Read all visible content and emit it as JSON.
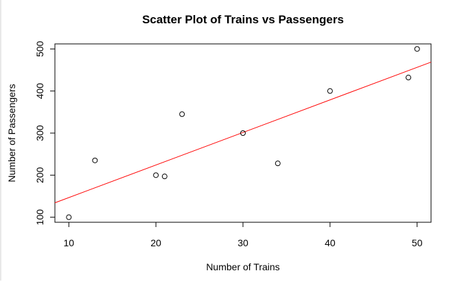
{
  "chart_data": {
    "type": "scatter",
    "title": "Scatter Plot of Trains vs Passengers",
    "xlabel": "Number of Trains",
    "ylabel": "Number of Passengers",
    "xlim": [
      8.4,
      51.6
    ],
    "ylim": [
      88,
      512
    ],
    "x_ticks": [
      "10",
      "20",
      "30",
      "40",
      "50"
    ],
    "y_ticks": [
      "100",
      "200",
      "300",
      "400",
      "500"
    ],
    "grid": false,
    "legend": "none",
    "marker": "open-circle",
    "point_color": "#000000",
    "points": [
      {
        "x": 10,
        "y": 100
      },
      {
        "x": 13,
        "y": 235
      },
      {
        "x": 20,
        "y": 200
      },
      {
        "x": 21,
        "y": 197
      },
      {
        "x": 23,
        "y": 345
      },
      {
        "x": 30,
        "y": 300
      },
      {
        "x": 34,
        "y": 228
      },
      {
        "x": 40,
        "y": 400
      },
      {
        "x": 49,
        "y": 432
      },
      {
        "x": 50,
        "y": 500
      }
    ],
    "regression_line": {
      "color": "#ff0000",
      "x": [
        8.4,
        51.6
      ],
      "y": [
        134.3,
        468.7
      ]
    }
  }
}
